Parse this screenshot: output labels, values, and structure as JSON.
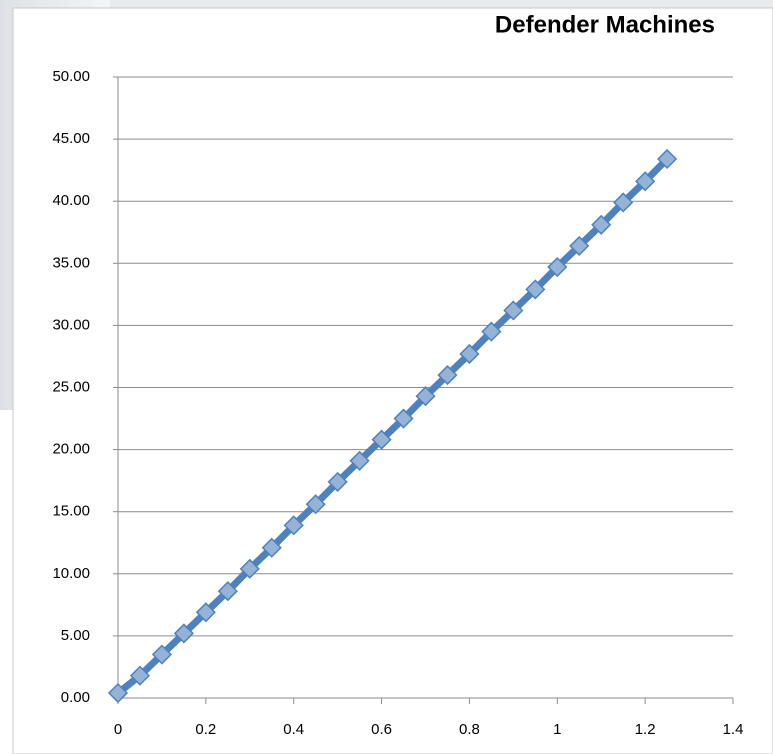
{
  "chart_data": {
    "type": "line",
    "title": "Defender Machines",
    "x": [
      0,
      0.05,
      0.1,
      0.15,
      0.2,
      0.25,
      0.3,
      0.35,
      0.4,
      0.45,
      0.5,
      0.55,
      0.6,
      0.65,
      0.7,
      0.75,
      0.8,
      0.85,
      0.9,
      0.95,
      1.0,
      1.05,
      1.1,
      1.15,
      1.2,
      1.25
    ],
    "values": [
      0.4,
      1.8,
      3.5,
      5.2,
      6.9,
      8.6,
      10.4,
      12.1,
      13.9,
      15.6,
      17.4,
      19.1,
      20.8,
      22.5,
      24.3,
      26.0,
      27.7,
      29.5,
      31.2,
      32.9,
      34.7,
      36.4,
      38.1,
      39.9,
      41.6,
      43.4
    ],
    "color": "#4f81bd",
    "marker_color": "#95b3d7",
    "xlim": [
      0,
      1.4
    ],
    "xticks": [
      0,
      0.2,
      0.4,
      0.6,
      0.8,
      1,
      1.2,
      1.4
    ],
    "ylim": [
      0,
      50
    ],
    "yticks": [
      {
        "value": 0,
        "label": "0.00"
      },
      {
        "value": 5,
        "label": "5.00"
      },
      {
        "value": 10,
        "label": "10.00"
      },
      {
        "value": 15,
        "label": "15.00"
      },
      {
        "value": 20,
        "label": "20.00"
      },
      {
        "value": 25,
        "label": "25.00"
      },
      {
        "value": 30,
        "label": "30.00"
      },
      {
        "value": 35,
        "label": "35.00"
      },
      {
        "value": 40,
        "label": "40.00"
      },
      {
        "value": 45,
        "label": "45.00"
      },
      {
        "value": 50,
        "label": "50.00"
      }
    ],
    "grid": true
  }
}
